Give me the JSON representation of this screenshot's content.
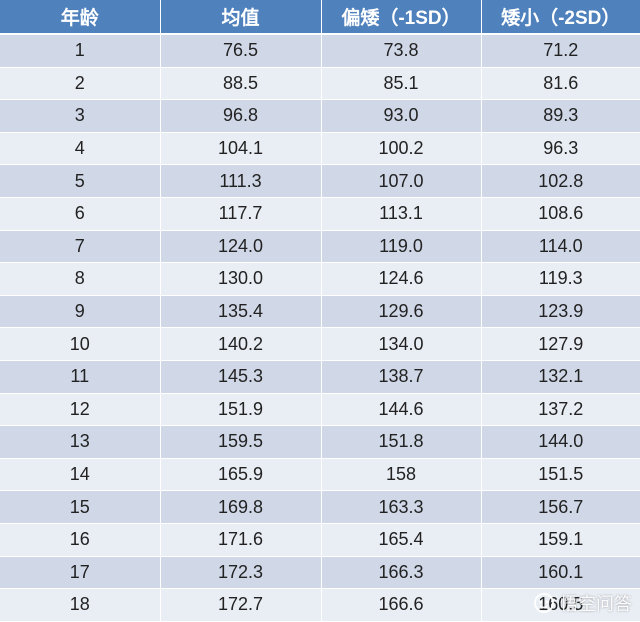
{
  "table": {
    "headers": [
      "年龄",
      "均值",
      "偏矮（-1SD）",
      "矮小（-2SD）"
    ],
    "rows": [
      [
        "1",
        "76.5",
        "73.8",
        "71.2"
      ],
      [
        "2",
        "88.5",
        "85.1",
        "81.6"
      ],
      [
        "3",
        "96.8",
        "93.0",
        "89.3"
      ],
      [
        "4",
        "104.1",
        "100.2",
        "96.3"
      ],
      [
        "5",
        "111.3",
        "107.0",
        "102.8"
      ],
      [
        "6",
        "117.7",
        "113.1",
        "108.6"
      ],
      [
        "7",
        "124.0",
        "119.0",
        "114.0"
      ],
      [
        "8",
        "130.0",
        "124.6",
        "119.3"
      ],
      [
        "9",
        "135.4",
        "129.6",
        "123.9"
      ],
      [
        "10",
        "140.2",
        "134.0",
        "127.9"
      ],
      [
        "11",
        "145.3",
        "138.7",
        "132.1"
      ],
      [
        "12",
        "151.9",
        "144.6",
        "137.2"
      ],
      [
        "13",
        "159.5",
        "151.8",
        "144.0"
      ],
      [
        "14",
        "165.9",
        "158",
        "151.5"
      ],
      [
        "15",
        "169.8",
        "163.3",
        "156.7"
      ],
      [
        "16",
        "171.6",
        "165.4",
        "159.1"
      ],
      [
        "17",
        "172.3",
        "166.3",
        "160.1"
      ],
      [
        "18",
        "172.7",
        "166.6",
        "160.5"
      ]
    ]
  },
  "watermark": {
    "text": "悟空问答",
    "icon": "wukong-logo-icon"
  },
  "colors": {
    "header_bg": "#4f81bd",
    "row_odd_bg": "#d0d8e8",
    "row_even_bg": "#e9edf4"
  }
}
